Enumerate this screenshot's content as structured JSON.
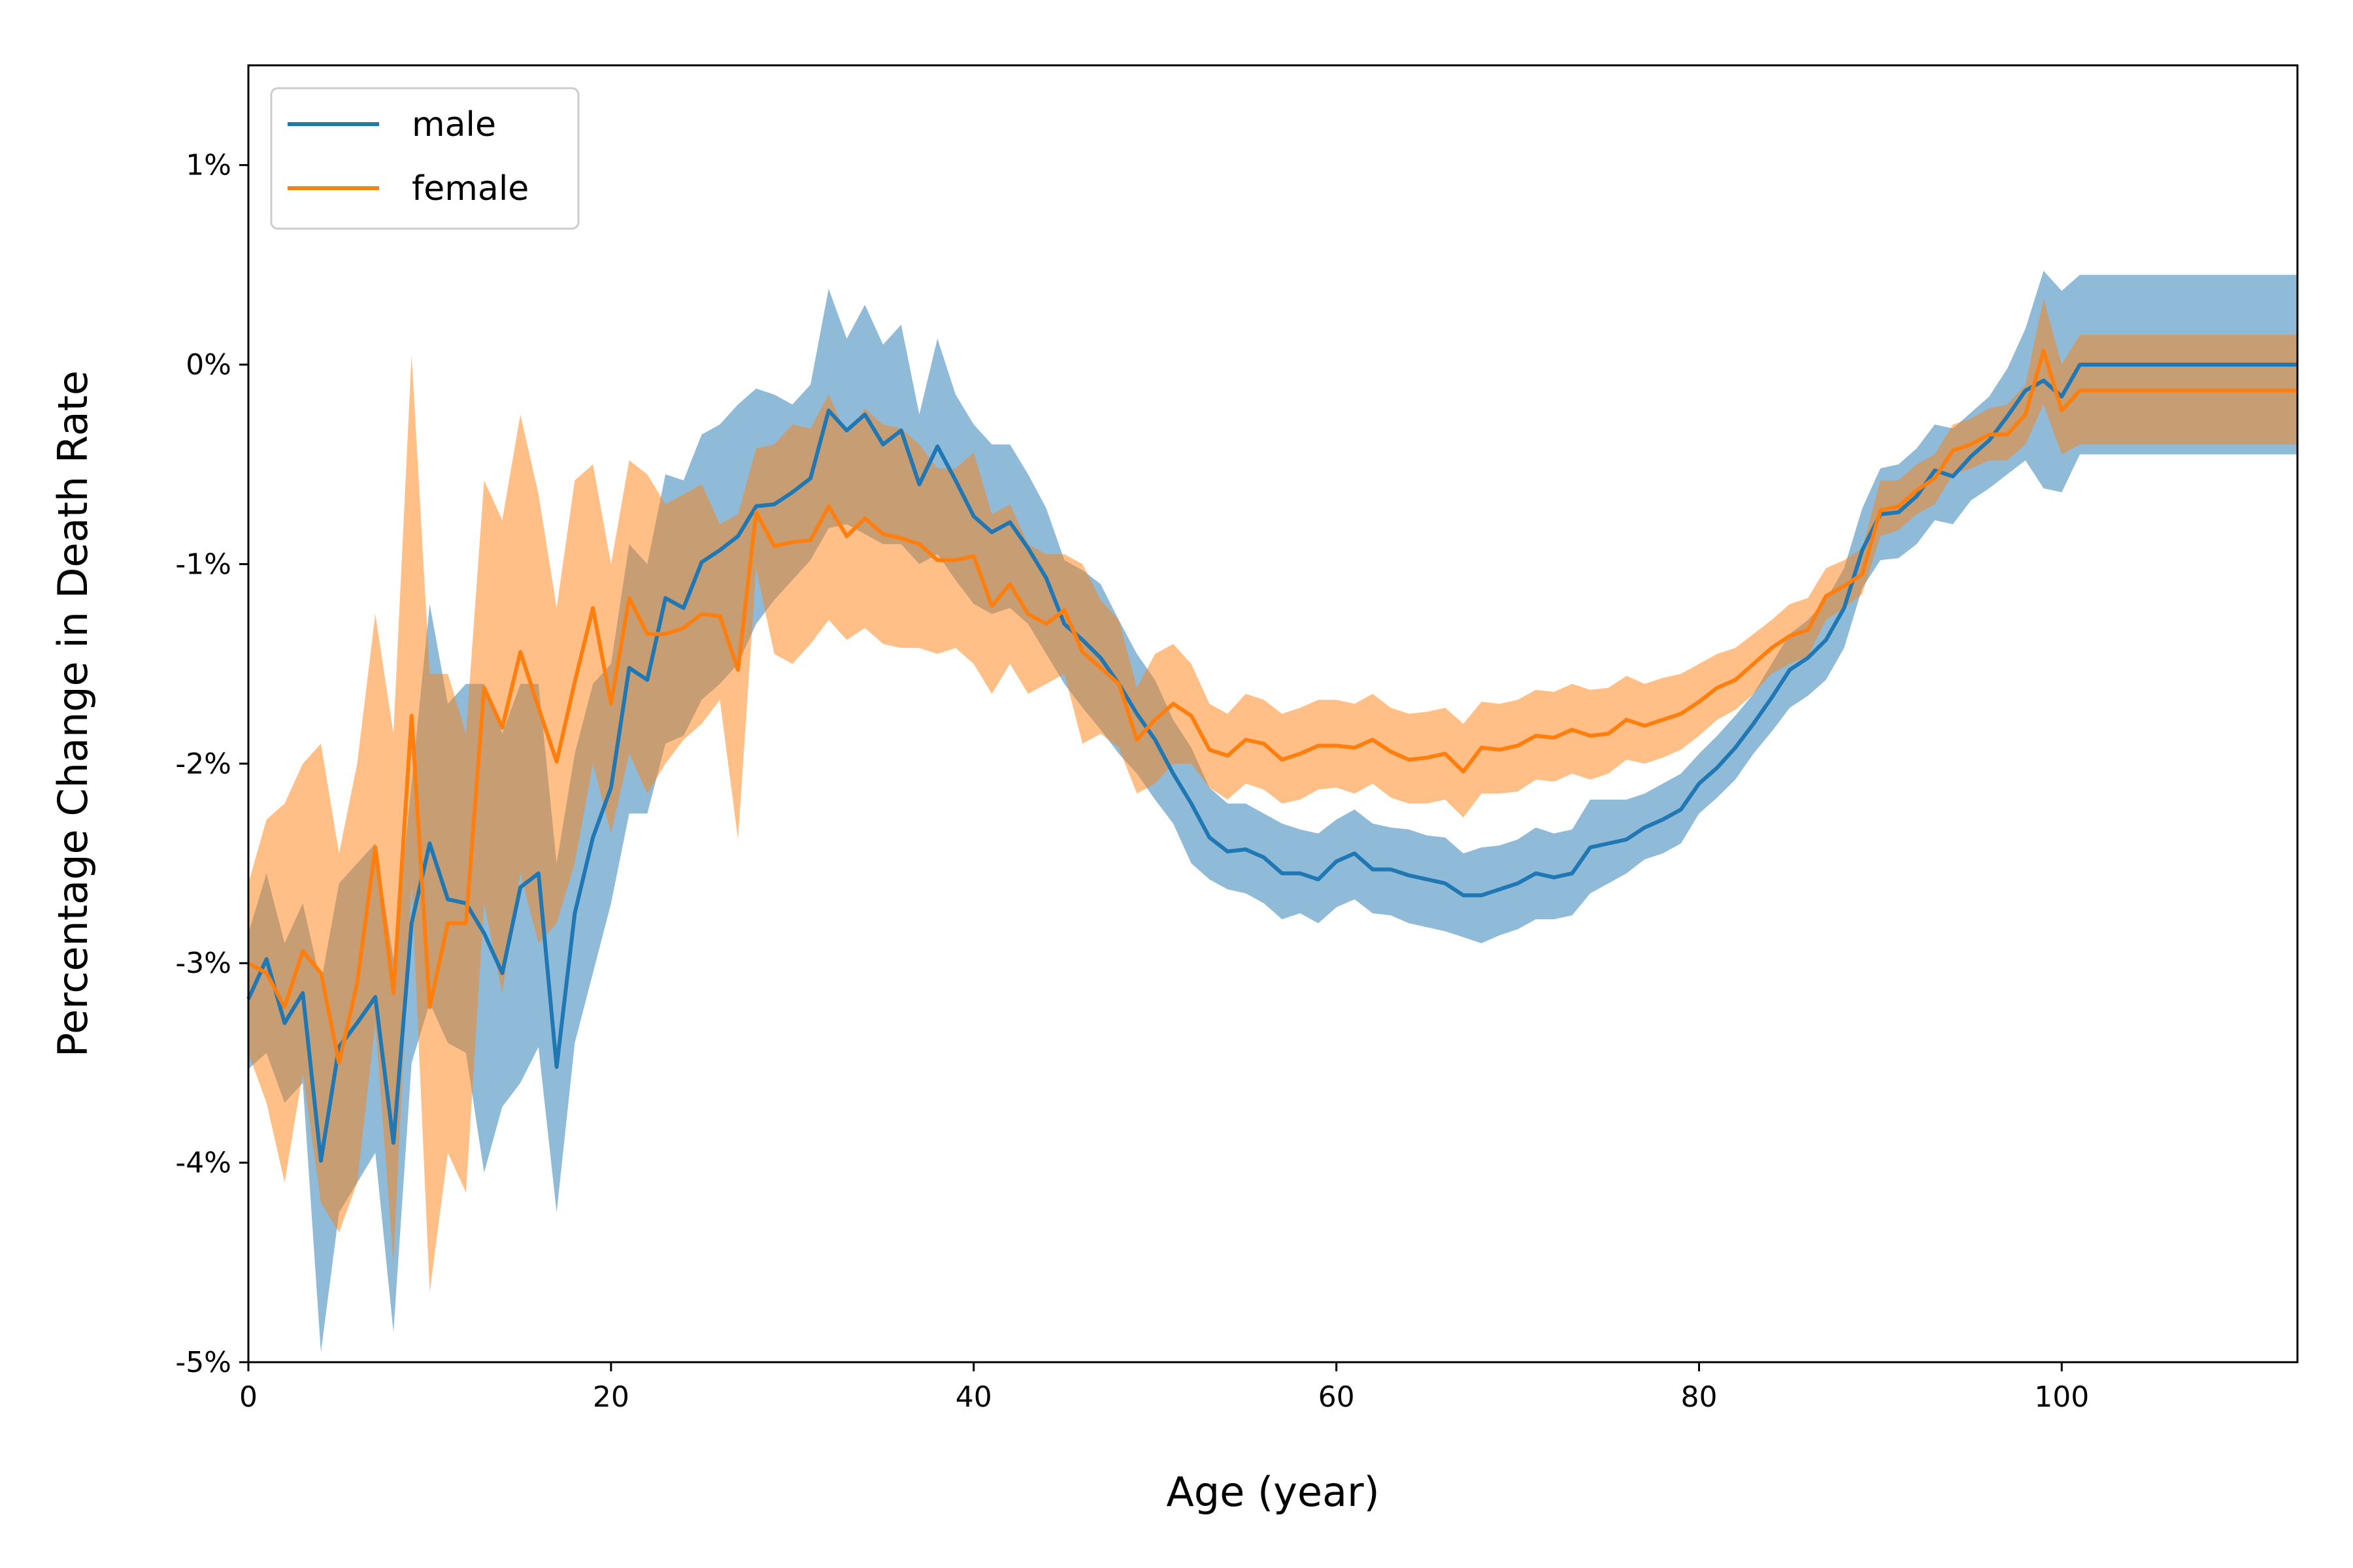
{
  "chart_data": {
    "type": "line",
    "xlabel": "Age (year)",
    "ylabel": "Percentage Change in Death Rate",
    "xlim": [
      0,
      113
    ],
    "ylim": [
      -5,
      1.5
    ],
    "xticks": [
      0,
      20,
      40,
      60,
      80,
      100
    ],
    "yticks": [
      -5,
      -4,
      -3,
      -2,
      -1,
      0,
      1
    ],
    "ytick_labels": [
      "-5%",
      "-4%",
      "-3%",
      "-2%",
      "-1%",
      "0%",
      "1%"
    ],
    "grid": false,
    "legend": "top-left",
    "series": [
      {
        "name": "male",
        "color": "#1f77b4",
        "band_color": "#1f77b4",
        "x": [
          0,
          1,
          2,
          3,
          4,
          5,
          6,
          7,
          8,
          9,
          10,
          11,
          12,
          13,
          14,
          15,
          16,
          17,
          18,
          19,
          20,
          21,
          22,
          23,
          24,
          25,
          26,
          27,
          28,
          29,
          30,
          31,
          32,
          33,
          34,
          35,
          36,
          37,
          38,
          39,
          40,
          41,
          42,
          43,
          44,
          45,
          46,
          47,
          48,
          49,
          50,
          51,
          52,
          53,
          54,
          55,
          56,
          57,
          58,
          59,
          60,
          61,
          62,
          63,
          64,
          65,
          66,
          67,
          68,
          69,
          70,
          71,
          72,
          73,
          74,
          75,
          76,
          77,
          78,
          79,
          80,
          81,
          82,
          83,
          84,
          85,
          86,
          87,
          88,
          89,
          90,
          91,
          92,
          93,
          94,
          95,
          96,
          97,
          98,
          99,
          100,
          101,
          102,
          103,
          104,
          105,
          106,
          107,
          108,
          109,
          110,
          111,
          112,
          113
        ],
        "y": [
          -3.18,
          -2.98,
          -3.3,
          -3.15,
          -3.99,
          -3.42,
          -3.3,
          -3.17,
          -3.9,
          -2.8,
          -2.4,
          -2.68,
          -2.7,
          -2.85,
          -3.05,
          -2.62,
          -2.55,
          -3.52,
          -2.75,
          -2.37,
          -2.12,
          -1.52,
          -1.58,
          -1.17,
          -1.22,
          -0.99,
          -0.93,
          -0.86,
          -0.71,
          -0.7,
          -0.64,
          -0.57,
          -0.23,
          -0.33,
          -0.25,
          -0.4,
          -0.33,
          -0.6,
          -0.41,
          -0.58,
          -0.76,
          -0.84,
          -0.79,
          -0.92,
          -1.07,
          -1.3,
          -1.38,
          -1.47,
          -1.6,
          -1.75,
          -1.88,
          -2.05,
          -2.2,
          -2.37,
          -2.44,
          -2.43,
          -2.47,
          -2.55,
          -2.55,
          -2.58,
          -2.49,
          -2.45,
          -2.53,
          -2.53,
          -2.56,
          -2.58,
          -2.6,
          -2.66,
          -2.66,
          -2.63,
          -2.6,
          -2.55,
          -2.57,
          -2.55,
          -2.42,
          -2.4,
          -2.38,
          -2.32,
          -2.28,
          -2.23,
          -2.1,
          -2.02,
          -1.92,
          -1.8,
          -1.67,
          -1.53,
          -1.47,
          -1.38,
          -1.22,
          -0.93,
          -0.75,
          -0.74,
          -0.66,
          -0.53,
          -0.56,
          -0.46,
          -0.38,
          -0.26,
          -0.13,
          -0.08,
          -0.16,
          0.0,
          0.0,
          0.0,
          0.0,
          0.0,
          0.0,
          0.0,
          0.0,
          0.0,
          0.0,
          0.0,
          0.0,
          0.0
        ],
        "lower": [
          -3.53,
          -3.45,
          -3.7,
          -3.6,
          -4.95,
          -4.25,
          -4.1,
          -3.95,
          -4.85,
          -3.5,
          -3.2,
          -3.4,
          -3.45,
          -4.05,
          -3.72,
          -3.6,
          -3.42,
          -4.25,
          -3.4,
          -3.05,
          -2.7,
          -2.25,
          -2.25,
          -1.9,
          -1.86,
          -1.68,
          -1.6,
          -1.5,
          -1.3,
          -1.18,
          -1.08,
          -0.98,
          -0.82,
          -0.8,
          -0.85,
          -0.9,
          -0.9,
          -1.0,
          -0.95,
          -1.08,
          -1.2,
          -1.25,
          -1.22,
          -1.3,
          -1.45,
          -1.6,
          -1.72,
          -1.83,
          -1.95,
          -2.05,
          -2.18,
          -2.3,
          -2.5,
          -2.58,
          -2.63,
          -2.65,
          -2.7,
          -2.78,
          -2.75,
          -2.8,
          -2.72,
          -2.68,
          -2.75,
          -2.76,
          -2.8,
          -2.82,
          -2.84,
          -2.87,
          -2.9,
          -2.86,
          -2.83,
          -2.78,
          -2.78,
          -2.76,
          -2.65,
          -2.6,
          -2.55,
          -2.48,
          -2.45,
          -2.4,
          -2.25,
          -2.17,
          -2.08,
          -1.95,
          -1.84,
          -1.72,
          -1.66,
          -1.58,
          -1.42,
          -1.12,
          -0.98,
          -0.97,
          -0.9,
          -0.78,
          -0.8,
          -0.68,
          -0.62,
          -0.55,
          -0.48,
          -0.62,
          -0.64,
          -0.45,
          -0.45,
          -0.45,
          -0.45,
          -0.45,
          -0.45,
          -0.45,
          -0.45,
          -0.45,
          -0.45,
          -0.45,
          -0.45,
          -0.45
        ],
        "upper": [
          -2.85,
          -2.55,
          -2.9,
          -2.7,
          -3.1,
          -2.6,
          -2.5,
          -2.4,
          -2.98,
          -2.1,
          -1.2,
          -1.7,
          -1.6,
          -1.6,
          -1.85,
          -1.6,
          -1.6,
          -2.5,
          -1.95,
          -1.6,
          -1.5,
          -0.9,
          -1.0,
          -0.55,
          -0.58,
          -0.35,
          -0.3,
          -0.2,
          -0.12,
          -0.15,
          -0.2,
          -0.1,
          0.38,
          0.13,
          0.3,
          0.1,
          0.2,
          -0.25,
          0.13,
          -0.15,
          -0.3,
          -0.4,
          -0.4,
          -0.55,
          -0.72,
          -0.98,
          -1.03,
          -1.1,
          -1.28,
          -1.45,
          -1.58,
          -1.78,
          -1.92,
          -2.12,
          -2.2,
          -2.2,
          -2.25,
          -2.3,
          -2.33,
          -2.35,
          -2.28,
          -2.23,
          -2.3,
          -2.32,
          -2.33,
          -2.36,
          -2.37,
          -2.45,
          -2.42,
          -2.41,
          -2.38,
          -2.32,
          -2.35,
          -2.33,
          -2.18,
          -2.18,
          -2.18,
          -2.15,
          -2.1,
          -2.05,
          -1.95,
          -1.86,
          -1.76,
          -1.65,
          -1.5,
          -1.35,
          -1.28,
          -1.18,
          -1.02,
          -0.72,
          -0.52,
          -0.5,
          -0.42,
          -0.3,
          -0.32,
          -0.24,
          -0.16,
          -0.02,
          0.18,
          0.47,
          0.37,
          0.45,
          0.45,
          0.45,
          0.45,
          0.45,
          0.45,
          0.45,
          0.45,
          0.45,
          0.45,
          0.45,
          0.45,
          0.45
        ]
      },
      {
        "name": "female",
        "color": "#ff7f0e",
        "band_color": "#ff7f0e",
        "x": [
          0,
          1,
          2,
          3,
          4,
          5,
          6,
          7,
          8,
          9,
          10,
          11,
          12,
          13,
          14,
          15,
          16,
          17,
          18,
          19,
          20,
          21,
          22,
          23,
          24,
          25,
          26,
          27,
          28,
          29,
          30,
          31,
          32,
          33,
          34,
          35,
          36,
          37,
          38,
          39,
          40,
          41,
          42,
          43,
          44,
          45,
          46,
          47,
          48,
          49,
          50,
          51,
          52,
          53,
          54,
          55,
          56,
          57,
          58,
          59,
          60,
          61,
          62,
          63,
          64,
          65,
          66,
          67,
          68,
          69,
          70,
          71,
          72,
          73,
          74,
          75,
          76,
          77,
          78,
          79,
          80,
          81,
          82,
          83,
          84,
          85,
          86,
          87,
          88,
          89,
          90,
          91,
          92,
          93,
          94,
          95,
          96,
          97,
          98,
          99,
          100,
          101,
          102,
          103,
          104,
          105,
          106,
          107,
          108,
          109,
          110,
          111,
          112,
          113
        ],
        "y": [
          -3.0,
          -3.05,
          -3.22,
          -2.94,
          -3.05,
          -3.5,
          -3.1,
          -2.42,
          -3.15,
          -1.76,
          -3.22,
          -2.8,
          -2.8,
          -1.62,
          -1.82,
          -1.44,
          -1.72,
          -1.99,
          -1.59,
          -1.22,
          -1.7,
          -1.17,
          -1.35,
          -1.35,
          -1.32,
          -1.25,
          -1.26,
          -1.53,
          -0.74,
          -0.91,
          -0.89,
          -0.88,
          -0.71,
          -0.86,
          -0.77,
          -0.85,
          -0.87,
          -0.9,
          -0.98,
          -0.98,
          -0.96,
          -1.21,
          -1.1,
          -1.25,
          -1.3,
          -1.23,
          -1.44,
          -1.52,
          -1.6,
          -1.88,
          -1.78,
          -1.7,
          -1.76,
          -1.93,
          -1.96,
          -1.88,
          -1.9,
          -1.98,
          -1.95,
          -1.91,
          -1.91,
          -1.92,
          -1.88,
          -1.94,
          -1.98,
          -1.97,
          -1.95,
          -2.04,
          -1.92,
          -1.93,
          -1.91,
          -1.86,
          -1.87,
          -1.83,
          -1.86,
          -1.85,
          -1.78,
          -1.81,
          -1.78,
          -1.75,
          -1.69,
          -1.62,
          -1.58,
          -1.5,
          -1.42,
          -1.36,
          -1.33,
          -1.16,
          -1.11,
          -1.05,
          -0.73,
          -0.71,
          -0.63,
          -0.57,
          -0.43,
          -0.4,
          -0.35,
          -0.35,
          -0.25,
          0.07,
          -0.23,
          -0.13,
          -0.13,
          -0.13,
          -0.13,
          -0.13,
          -0.13,
          -0.13,
          -0.13,
          -0.13,
          -0.13,
          -0.13,
          -0.13,
          -0.13
        ],
        "lower": [
          -3.45,
          -3.7,
          -4.1,
          -3.55,
          -4.2,
          -4.35,
          -4.1,
          -3.3,
          -4.5,
          -2.6,
          -4.65,
          -3.95,
          -4.15,
          -2.7,
          -3.15,
          -2.55,
          -2.9,
          -2.8,
          -2.5,
          -2.0,
          -2.35,
          -1.95,
          -2.15,
          -2.0,
          -1.88,
          -1.8,
          -1.68,
          -2.38,
          -1.02,
          -1.45,
          -1.5,
          -1.4,
          -1.28,
          -1.38,
          -1.32,
          -1.4,
          -1.42,
          -1.42,
          -1.45,
          -1.42,
          -1.5,
          -1.65,
          -1.5,
          -1.65,
          -1.6,
          -1.55,
          -1.9,
          -1.85,
          -1.92,
          -2.15,
          -2.1,
          -2.0,
          -2.0,
          -2.12,
          -2.18,
          -2.1,
          -2.13,
          -2.2,
          -2.18,
          -2.13,
          -2.12,
          -2.15,
          -2.1,
          -2.17,
          -2.2,
          -2.2,
          -2.18,
          -2.27,
          -2.15,
          -2.15,
          -2.14,
          -2.08,
          -2.09,
          -2.05,
          -2.08,
          -2.05,
          -1.98,
          -2.0,
          -1.97,
          -1.93,
          -1.86,
          -1.78,
          -1.73,
          -1.65,
          -1.55,
          -1.5,
          -1.46,
          -1.28,
          -1.22,
          -1.15,
          -0.86,
          -0.83,
          -0.75,
          -0.7,
          -0.55,
          -0.52,
          -0.48,
          -0.48,
          -0.4,
          -0.2,
          -0.45,
          -0.4,
          -0.4,
          -0.4,
          -0.4,
          -0.4,
          -0.4,
          -0.4,
          -0.4,
          -0.4,
          -0.4,
          -0.4,
          -0.4,
          -0.4
        ],
        "upper": [
          -2.6,
          -2.28,
          -2.2,
          -2.0,
          -1.9,
          -2.45,
          -2.0,
          -1.25,
          -1.85,
          0.05,
          -1.55,
          -1.55,
          -1.85,
          -0.58,
          -0.78,
          -0.25,
          -0.65,
          -1.22,
          -0.58,
          -0.5,
          -1.0,
          -0.48,
          -0.55,
          -0.7,
          -0.65,
          -0.6,
          -0.8,
          -0.75,
          -0.42,
          -0.4,
          -0.3,
          -0.32,
          -0.15,
          -0.35,
          -0.22,
          -0.3,
          -0.32,
          -0.4,
          -0.52,
          -0.52,
          -0.44,
          -0.75,
          -0.7,
          -0.9,
          -0.95,
          -0.95,
          -1.0,
          -1.18,
          -1.28,
          -1.62,
          -1.45,
          -1.4,
          -1.5,
          -1.7,
          -1.75,
          -1.65,
          -1.68,
          -1.75,
          -1.72,
          -1.68,
          -1.68,
          -1.7,
          -1.65,
          -1.72,
          -1.75,
          -1.74,
          -1.72,
          -1.8,
          -1.69,
          -1.7,
          -1.68,
          -1.63,
          -1.64,
          -1.6,
          -1.63,
          -1.62,
          -1.56,
          -1.6,
          -1.57,
          -1.55,
          -1.5,
          -1.45,
          -1.42,
          -1.35,
          -1.28,
          -1.2,
          -1.17,
          -1.02,
          -0.98,
          -0.92,
          -0.58,
          -0.58,
          -0.5,
          -0.45,
          -0.3,
          -0.27,
          -0.22,
          -0.2,
          -0.1,
          0.33,
          0.0,
          0.15,
          0.15,
          0.15,
          0.15,
          0.15,
          0.15,
          0.15,
          0.15,
          0.15,
          0.15,
          0.15,
          0.15,
          0.15
        ]
      }
    ]
  }
}
